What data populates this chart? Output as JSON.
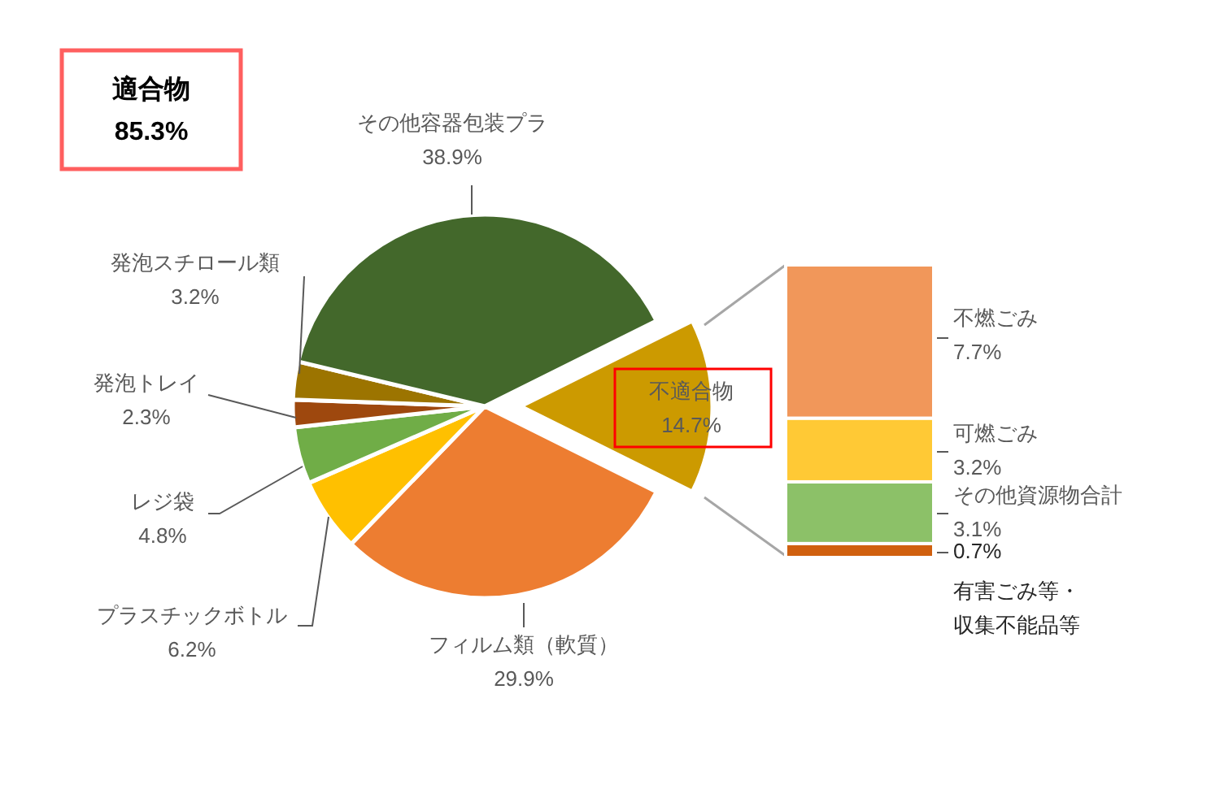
{
  "chart_data": [
    {
      "type": "pie",
      "categories": [
        "不適合物",
        "フィルム類（軟質）",
        "プラスチックボトル",
        "レジ袋",
        "発泡トレイ",
        "発泡スチロール類",
        "その他容器包装プラ"
      ],
      "values": [
        14.7,
        29.9,
        6.2,
        4.8,
        2.3,
        3.2,
        38.9
      ],
      "colors": [
        "#cc9a00",
        "#ed7d31",
        "#ffc000",
        "#70ad47",
        "#9e480e",
        "#9c7400",
        "#43682b"
      ],
      "value_labels": [
        "14.7%",
        "29.9%",
        "6.2%",
        "4.8%",
        "2.3%",
        "3.2%",
        "38.9%"
      ],
      "annotations": [
        "適合物\n85.3%"
      ]
    },
    {
      "type": "bar",
      "stacked": true,
      "categories": [
        null
      ],
      "series": [
        {
          "name": "有害ごみ等・収集不能品等",
          "color": "#d0600f",
          "values": [
            0.7
          ],
          "value_labels": [
            "0.7%"
          ]
        },
        {
          "name": "その他資源物合計",
          "color": "#8cc168",
          "values": [
            3.1
          ],
          "value_labels": [
            "3.1%"
          ]
        },
        {
          "name": "可燃ごみ",
          "color": "#ffc935",
          "values": [
            3.2
          ],
          "value_labels": [
            "3.2%"
          ]
        },
        {
          "name": "不燃ごみ",
          "color": "#f1975a",
          "values": [
            7.7
          ],
          "value_labels": [
            "7.7%"
          ]
        }
      ]
    }
  ]
}
